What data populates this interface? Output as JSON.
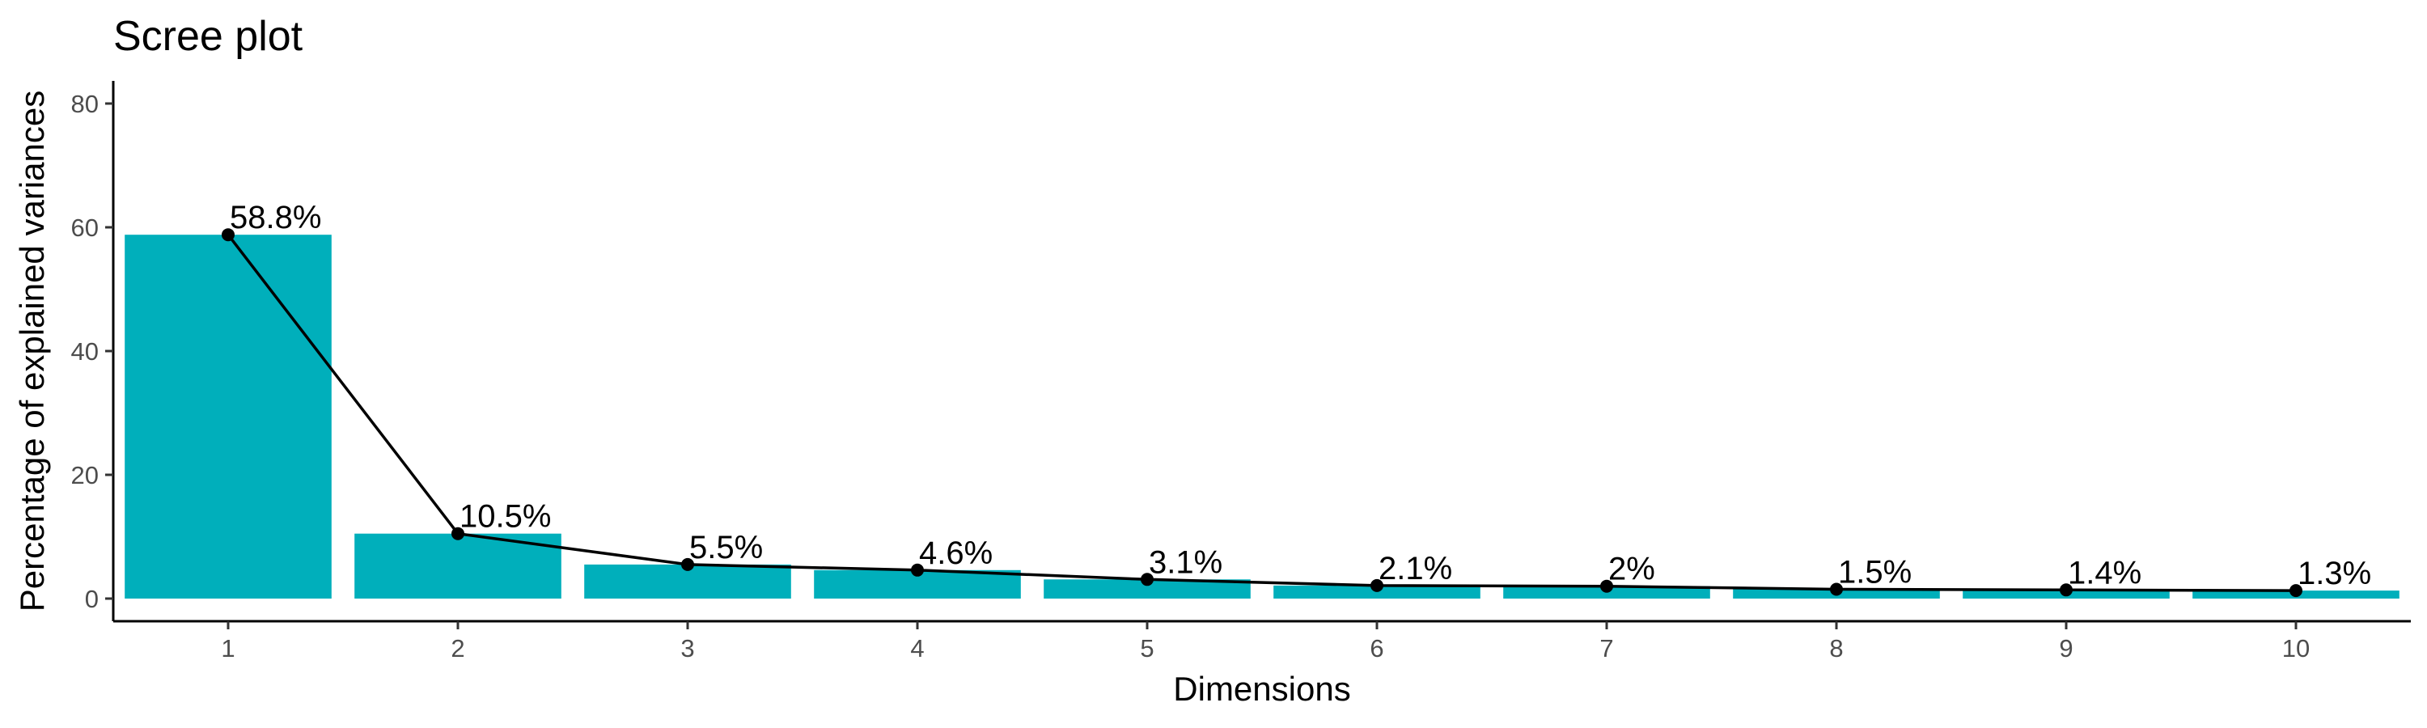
{
  "chart_data": {
    "type": "bar",
    "title": "Scree plot",
    "xlabel": "Dimensions",
    "ylabel": "Percentage of explained variances",
    "categories": [
      "1",
      "2",
      "3",
      "4",
      "5",
      "6",
      "7",
      "8",
      "9",
      "10"
    ],
    "values": [
      58.8,
      10.5,
      5.5,
      4.6,
      3.1,
      2.1,
      2.0,
      1.5,
      1.4,
      1.3
    ],
    "data_labels": [
      "58.8%",
      "10.5%",
      "5.5%",
      "4.6%",
      "3.1%",
      "2.1%",
      "2%",
      "1.5%",
      "1.4%",
      "1.3%"
    ],
    "ylim": [
      0,
      80
    ],
    "yticks": [
      0,
      20,
      40,
      60,
      80
    ],
    "grid": false,
    "overlay_line": true,
    "bar_color": "#00AFBB",
    "line_color": "#000000"
  }
}
